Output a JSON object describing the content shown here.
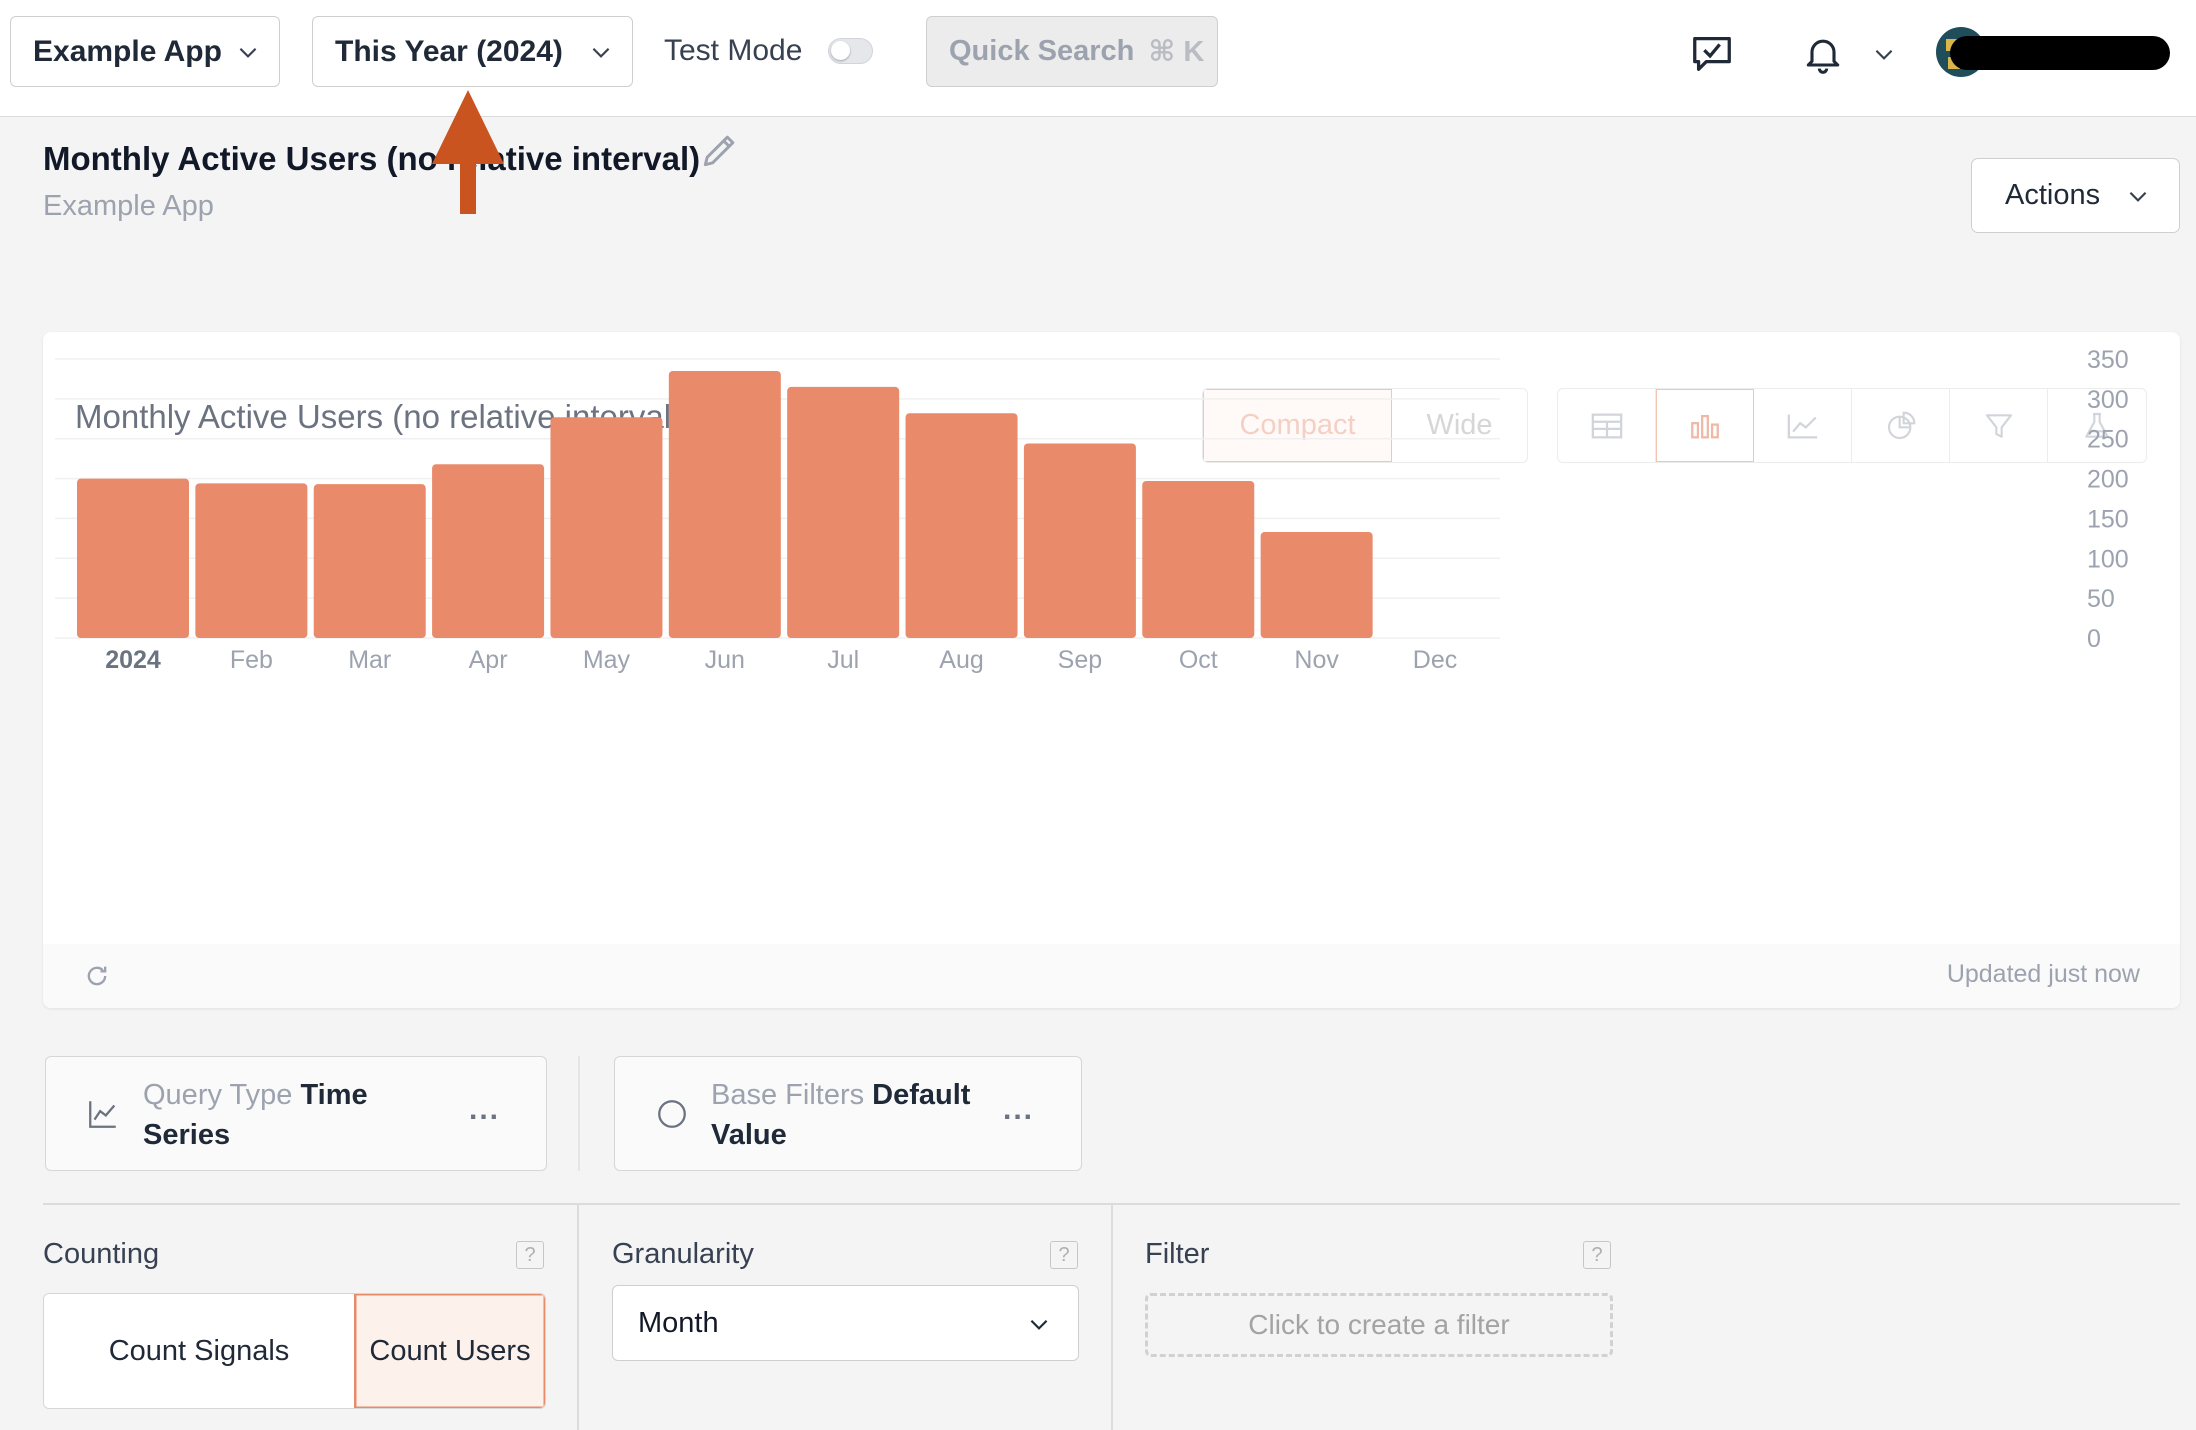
{
  "topbar": {
    "app_selector": "Example App",
    "range_selector": "This Year (2024)",
    "test_mode_label": "Test Mode",
    "test_mode_on": false,
    "quick_search_label": "Quick Search",
    "quick_search_shortcut": "⌘ K",
    "icons": [
      "feedback-icon",
      "bell-icon",
      "chevron-down-icon",
      "avatar"
    ]
  },
  "header": {
    "title": "Monthly Active Users (no relative interval)",
    "subtitle": "Example App",
    "actions_label": "Actions"
  },
  "card": {
    "title": "Monthly Active Users (no relative interval)",
    "layout_options": [
      "Compact",
      "Wide"
    ],
    "layout_active": "Compact",
    "visualization_icons": [
      "table-icon",
      "bar-chart-icon",
      "line-chart-icon",
      "pie-chart-icon",
      "funnel-icon",
      "experiment-icon"
    ],
    "visualization_active": "bar-chart-icon",
    "updated_text": "Updated just now"
  },
  "chart_data": {
    "type": "bar",
    "categories": [
      "2024",
      "Feb",
      "Mar",
      "Apr",
      "May",
      "Jun",
      "Jul",
      "Aug",
      "Sep",
      "Oct",
      "Nov",
      "Dec"
    ],
    "values": [
      200,
      194,
      193,
      218,
      277,
      335,
      315,
      282,
      244,
      197,
      133,
      null
    ],
    "ylim": [
      0,
      350
    ],
    "yticks": [
      0,
      50,
      100,
      150,
      200,
      250,
      300,
      350
    ],
    "y_axis_position": "right",
    "grid": true,
    "bar_color": "#e98a6b"
  },
  "query": {
    "type_label": "Query Type",
    "type_value": "Time Series",
    "filters_label": "Base Filters",
    "filters_value": "Default Value",
    "more": "..."
  },
  "settings": {
    "counting_label": "Counting",
    "counting_options": [
      "Count Signals",
      "Count Users"
    ],
    "counting_active": "Count Users",
    "granularity_label": "Granularity",
    "granularity_value": "Month",
    "filter_label": "Filter",
    "filter_placeholder": "Click to create a filter",
    "help_glyph": "?"
  },
  "colors": {
    "accent": "#e98a6b",
    "annotation_arrow": "#c9541f"
  }
}
